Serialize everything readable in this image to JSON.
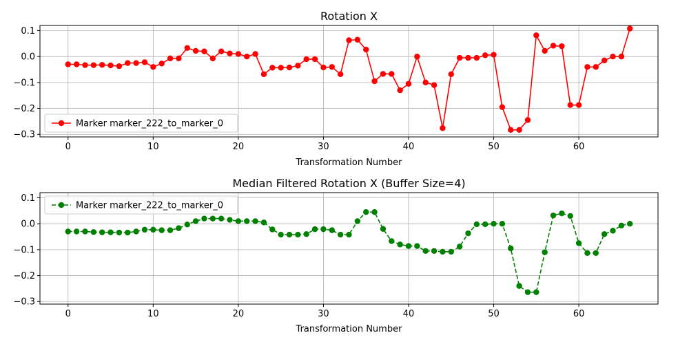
{
  "chart_data": [
    {
      "type": "line",
      "title": "Rotation X",
      "xlabel": "Transformation Number",
      "ylabel": "",
      "xlim": [
        -3.3,
        69.3
      ],
      "ylim": [
        -0.31,
        0.12
      ],
      "xticks": [
        0,
        10,
        20,
        30,
        40,
        50,
        60
      ],
      "yticks": [
        -0.3,
        -0.2,
        -0.1,
        0.0,
        0.1
      ],
      "ytick_labels": [
        "−0.3",
        "−0.2",
        "−0.1",
        "0.0",
        "0.1"
      ],
      "grid": true,
      "legend_position": "lower-left",
      "series": [
        {
          "name": "Marker marker_222_to_marker_0",
          "color": "#ff0000",
          "line_style": "solid",
          "marker": "circle",
          "x": [
            0,
            1,
            2,
            3,
            4,
            5,
            6,
            7,
            8,
            9,
            10,
            11,
            12,
            13,
            14,
            15,
            16,
            17,
            18,
            19,
            20,
            21,
            22,
            23,
            24,
            25,
            26,
            27,
            28,
            29,
            30,
            31,
            32,
            33,
            34,
            35,
            36,
            37,
            38,
            39,
            40,
            41,
            42,
            43,
            44,
            45,
            46,
            47,
            48,
            49,
            50,
            51,
            52,
            53,
            54,
            55,
            56,
            57,
            58,
            59,
            60,
            61,
            62,
            63,
            64,
            65,
            66
          ],
          "y": [
            -0.03,
            -0.03,
            -0.033,
            -0.033,
            -0.032,
            -0.034,
            -0.037,
            -0.025,
            -0.025,
            -0.022,
            -0.04,
            -0.027,
            -0.007,
            -0.007,
            0.033,
            0.022,
            0.02,
            -0.007,
            0.02,
            0.012,
            0.01,
            0.0,
            0.01,
            -0.068,
            -0.043,
            -0.043,
            -0.042,
            -0.035,
            -0.01,
            -0.01,
            -0.042,
            -0.04,
            -0.068,
            0.063,
            0.065,
            0.027,
            -0.095,
            -0.067,
            -0.067,
            -0.13,
            -0.105,
            0.0,
            -0.1,
            -0.11,
            -0.276,
            -0.068,
            -0.005,
            -0.005,
            -0.005,
            0.005,
            0.007,
            -0.195,
            -0.283,
            -0.283,
            -0.245,
            0.082,
            0.022,
            0.042,
            0.04,
            -0.187,
            -0.187,
            -0.04,
            -0.04,
            -0.015,
            0.0,
            0.0,
            0.108
          ]
        }
      ]
    },
    {
      "type": "line",
      "title": "Median Filtered Rotation X (Buffer Size=4)",
      "xlabel": "Transformation Number",
      "ylabel": "",
      "xlim": [
        -3.3,
        69.3
      ],
      "ylim": [
        -0.31,
        0.12
      ],
      "xticks": [
        0,
        10,
        20,
        30,
        40,
        50,
        60
      ],
      "yticks": [
        -0.3,
        -0.2,
        -0.1,
        0.0,
        0.1
      ],
      "ytick_labels": [
        "−0.3",
        "−0.2",
        "−0.1",
        "0.0",
        "0.1"
      ],
      "grid": true,
      "legend_position": "upper-left",
      "series": [
        {
          "name": "Marker marker_222_to_marker_0",
          "color": "#008000",
          "line_style": "dashed",
          "marker": "circle",
          "x": [
            0,
            1,
            2,
            3,
            4,
            5,
            6,
            7,
            8,
            9,
            10,
            11,
            12,
            13,
            14,
            15,
            16,
            17,
            18,
            19,
            20,
            21,
            22,
            23,
            24,
            25,
            26,
            27,
            28,
            29,
            30,
            31,
            32,
            33,
            34,
            35,
            36,
            37,
            38,
            39,
            40,
            41,
            42,
            43,
            44,
            45,
            46,
            47,
            48,
            49,
            50,
            51,
            52,
            53,
            54,
            55,
            56,
            57,
            58,
            59,
            60,
            61,
            62,
            63,
            64,
            65,
            66
          ],
          "y": [
            -0.03,
            -0.03,
            -0.03,
            -0.032,
            -0.033,
            -0.033,
            -0.034,
            -0.034,
            -0.03,
            -0.023,
            -0.023,
            -0.025,
            -0.025,
            -0.017,
            -0.003,
            0.01,
            0.02,
            0.02,
            0.02,
            0.015,
            0.01,
            0.01,
            0.01,
            0.005,
            -0.022,
            -0.042,
            -0.042,
            -0.042,
            -0.04,
            -0.021,
            -0.021,
            -0.025,
            -0.042,
            -0.042,
            0.01,
            0.045,
            0.045,
            -0.02,
            -0.067,
            -0.08,
            -0.086,
            -0.086,
            -0.105,
            -0.105,
            -0.108,
            -0.108,
            -0.088,
            -0.037,
            -0.002,
            -0.002,
            0.0,
            0.0,
            -0.095,
            -0.24,
            -0.264,
            -0.264,
            -0.11,
            0.032,
            0.04,
            0.03,
            -0.075,
            -0.113,
            -0.113,
            -0.04,
            -0.027,
            -0.007,
            0.0
          ]
        }
      ]
    }
  ]
}
